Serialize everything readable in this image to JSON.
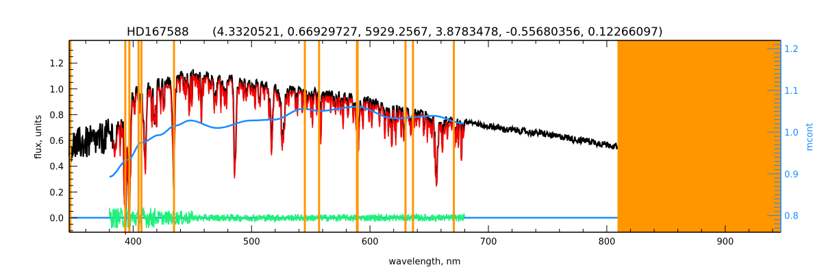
{
  "chart_data": {
    "type": "line",
    "title_star": "HD167588",
    "title_params": "(4.3320521, 0.66929727, 5929.2567, 3.8783478, -0.55680356, 0.12266097)",
    "xlabel": "wavelength, nm",
    "ylabel": "flux, units",
    "ylabel_right": "mcont",
    "xlim": [
      346,
      947
    ],
    "ylim": [
      -0.112,
      1.376
    ],
    "ylim_right": [
      0.76,
      1.22
    ],
    "xticks": [
      "400",
      "500",
      "600",
      "700",
      "800",
      "900"
    ],
    "yticks": [
      "0.0",
      "0.2",
      "0.4",
      "0.6",
      "0.8",
      "1.0",
      "1.2"
    ],
    "yticks_right": [
      "0.8",
      "0.9",
      "1.0",
      "1.1",
      "1.2"
    ],
    "masked_region": [
      809,
      947
    ],
    "masked_lines_nm": [
      347,
      393.4,
      396.8,
      404.6,
      407.0,
      434.5,
      545.0,
      557.0,
      589.0,
      589.6,
      630.0,
      636.3,
      670.8
    ],
    "series": [
      {
        "name": "observed flux",
        "color": "#000000",
        "axis": "left",
        "x": [
          346,
          360,
          370,
          380,
          390,
          400,
          410,
          420,
          430,
          440,
          450,
          460,
          470,
          480,
          490,
          500,
          520,
          540,
          560,
          580,
          600,
          620,
          640,
          660,
          680,
          700,
          720,
          740,
          760,
          780,
          800,
          809
        ],
        "y": [
          0.56,
          0.58,
          0.6,
          0.64,
          0.78,
          0.98,
          1.02,
          1.03,
          1.05,
          1.12,
          1.14,
          1.12,
          1.11,
          1.1,
          1.08,
          1.06,
          1.02,
          1.0,
          0.98,
          0.96,
          0.92,
          0.87,
          0.83,
          0.79,
          0.75,
          0.71,
          0.68,
          0.66,
          0.63,
          0.6,
          0.57,
          0.55
        ],
        "absorption_lines": [
          {
            "nm": 393.4,
            "min": 0.12
          },
          {
            "nm": 396.8,
            "min": 0.13
          },
          {
            "nm": 410.2,
            "min": 0.5
          },
          {
            "nm": 434.0,
            "min": 0.5
          },
          {
            "nm": 486.1,
            "min": 0.47
          },
          {
            "nm": 517.0,
            "min": 0.62
          },
          {
            "nm": 527.0,
            "min": 0.72
          },
          {
            "nm": 589.0,
            "min": 0.69
          },
          {
            "nm": 656.3,
            "min": 0.3
          }
        ]
      },
      {
        "name": "model fit",
        "color": "#ff0000",
        "axis": "left",
        "range_nm": [
          383,
          680
        ]
      },
      {
        "name": "mcont",
        "color": "#1a8cff",
        "axis": "right",
        "x": [
          380,
          395.7,
          407,
          422,
          436,
          448,
          470.9,
          499.8,
          518.8,
          543.7,
          557.6,
          588.2,
          621,
          653.5,
          679
        ],
        "y": [
          0.893,
          0.934,
          0.975,
          0.993,
          1.016,
          1.028,
          1.01,
          1.028,
          1.03,
          1.056,
          1.051,
          1.061,
          1.033,
          1.039,
          1.021
        ]
      },
      {
        "name": "residual",
        "color": "#1ef07a",
        "axis": "left",
        "range_nm": [
          380,
          680
        ],
        "center": 0.0,
        "amplitude": 0.05
      },
      {
        "name": "zero baseline",
        "color": "#1a8cff",
        "axis": "left",
        "range_nm": [
          346,
          809
        ],
        "value": 0.0
      }
    ],
    "colors": {
      "mask": "#ff9600",
      "right_axis": "#1a8cff"
    }
  }
}
